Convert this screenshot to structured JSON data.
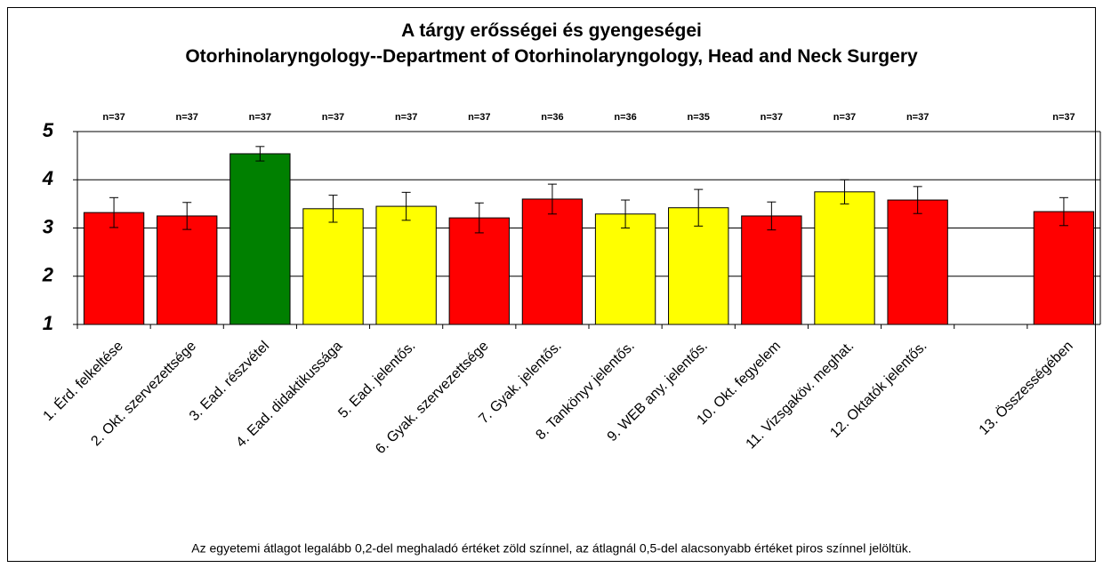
{
  "chart_data": {
    "type": "bar",
    "title": "A tárgy erősségei és gyengeségei",
    "subtitle": "Otorhinolaryngology--Department of Otorhinolaryngology, Head and Neck Surgery",
    "categories": [
      "1. Érd. felkeltése",
      "2. Okt. szervezettsége",
      "3. Ead. részvétel",
      "4. Ead. didaktikussága",
      "5. Ead. jelentős.",
      "6. Gyak. szervezettsége",
      "7. Gyak. jelentős.",
      "8. Tankönyv jelentős.",
      "9. WEB any. jelentős.",
      "10. Okt. fegyelem",
      "11. Vizsgaköv. meghat.",
      "12. Oktatók jelentős.",
      null,
      "13. Összességében"
    ],
    "values": [
      3.32,
      3.25,
      4.54,
      3.4,
      3.45,
      3.21,
      3.6,
      3.29,
      3.42,
      3.25,
      3.75,
      3.58,
      null,
      3.34
    ],
    "errors": [
      0.31,
      0.28,
      0.15,
      0.28,
      0.29,
      0.31,
      0.31,
      0.29,
      0.38,
      0.29,
      0.25,
      0.28,
      null,
      0.29
    ],
    "colors": [
      "#ff0000",
      "#ff0000",
      "#008000",
      "#ffff00",
      "#ffff00",
      "#ff0000",
      "#ff0000",
      "#ffff00",
      "#ffff00",
      "#ff0000",
      "#ffff00",
      "#ff0000",
      null,
      "#ff0000"
    ],
    "n_labels": [
      "n=37",
      "n=37",
      "n=37",
      "n=37",
      "n=37",
      "n=37",
      "n=36",
      "n=36",
      "n=35",
      "n=37",
      "n=37",
      "n=37",
      null,
      "n=37"
    ],
    "ylim": [
      1,
      5
    ],
    "yticks": [
      1,
      2,
      3,
      4,
      5
    ],
    "grid": true,
    "note": "Az egyetemi átlagot legalább 0,2-del meghaladó értéket zöld színnel, az átlagnál 0,5-del alacsonyabb értéket piros színnel jelöltük."
  }
}
